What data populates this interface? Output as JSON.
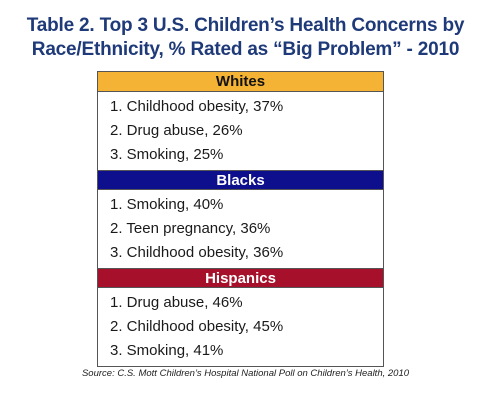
{
  "title": {
    "line1": "Table 2. Top 3 U.S. Children’s Health Concerns by",
    "line2": "Race/Ethnicity, % Rated as “Big Problem” - 2010"
  },
  "groups": [
    {
      "name": "Whites",
      "color": "#f5b336",
      "items": [
        "1. Childhood obesity, 37%",
        "2. Drug abuse, 26%",
        "3. Smoking, 25%"
      ]
    },
    {
      "name": "Blacks",
      "color": "#0d0f8c",
      "items": [
        "1. Smoking, 40%",
        "2. Teen pregnancy, 36%",
        "3. Childhood obesity, 36%"
      ]
    },
    {
      "name": "Hispanics",
      "color": "#a6102a",
      "items": [
        "1. Drug abuse, 46%",
        "2. Childhood obesity, 45%",
        "3. Smoking, 41%"
      ]
    }
  ],
  "source": "Source: C.S. Mott Children’s Hospital National Poll on Children’s Health, 2010",
  "colors": {
    "title": "#1f3a78"
  }
}
